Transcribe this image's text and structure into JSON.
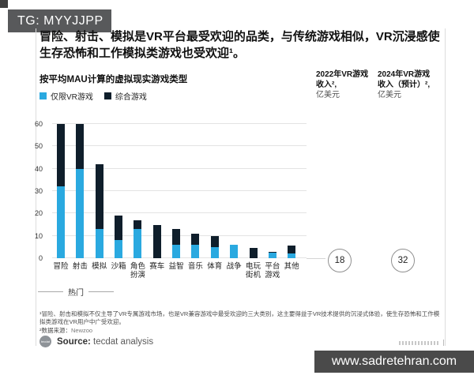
{
  "badge": {
    "text": "TG: MYYJJPP"
  },
  "headline": "冒险、射击、模拟是VR平台最受欢迎的品类，与传统游戏相似，VR沉浸感使生存恐怖和工作模拟类游戏也受欢迎¹。",
  "chart": {
    "subtitle": "按平均MAU计算的虚拟现实游戏类型",
    "legend": [
      {
        "label": "仅限VR游戏",
        "color": "#2aa9e0"
      },
      {
        "label": "综合游戏",
        "color": "#0f1e2b"
      }
    ],
    "group_label": "热门"
  },
  "revenue_columns": [
    {
      "line1": "2022年VR游戏",
      "line2": "收入²,",
      "unit": "亿美元",
      "value": "18"
    },
    {
      "line1": "2024年VR游戏",
      "line2": "收入（预计）²,",
      "unit": "亿美元",
      "value": "32"
    }
  ],
  "chart_data": {
    "type": "bar",
    "stacked": true,
    "title": "按平均MAU计算的虚拟现实游戏类型",
    "categories": [
      "冒险",
      "射击",
      "模拟",
      "沙箱",
      "角色扮演",
      "赛车",
      "益智",
      "音乐",
      "体育",
      "战争",
      "电玩街机",
      "平台游戏",
      "其他"
    ],
    "tick_labels": [
      "冒险",
      "射击",
      "模拟",
      "沙箱",
      "角色\n扮演",
      "赛车",
      "益智",
      "音乐",
      "体育",
      "战争",
      "电玩\n街机",
      "平台\n游戏",
      "其他"
    ],
    "series": [
      {
        "name": "仅限VR游戏",
        "color": "#2aa9e0",
        "values": [
          32,
          40,
          13,
          8,
          13,
          0,
          6,
          6,
          5,
          6,
          0,
          2.5,
          2
        ]
      },
      {
        "name": "综合游戏",
        "color": "#0f1e2b",
        "values": [
          28,
          20,
          29,
          11,
          4,
          15,
          7,
          5,
          5,
          0,
          4.5,
          0.5,
          3.5
        ]
      }
    ],
    "yticks": [
      0,
      10,
      20,
      30,
      40,
      50,
      60
    ],
    "ylim": [
      0,
      60
    ],
    "grid": true,
    "legend_position": "top-left",
    "highlight_group": {
      "label": "热门",
      "categories": [
        "冒险",
        "射击",
        "模拟"
      ]
    }
  },
  "footnotes": {
    "note1": "¹冒险、射击和模拟不仅主导了VR专属游戏市场，也是VR兼容游戏中最受欢迎的三大类别，这主要得益于VR技术提供的沉浸式体验，使生存恐怖和工作模拟类游戏在VR用户中广受欢迎。",
    "note2_prefix": "²数据来源：",
    "note2_source": "Newzoo",
    "logo_text": "tecdat",
    "source_label": "Source:",
    "source_text": " tecdat analysis"
  },
  "watermark": "www.sadretehran.com"
}
